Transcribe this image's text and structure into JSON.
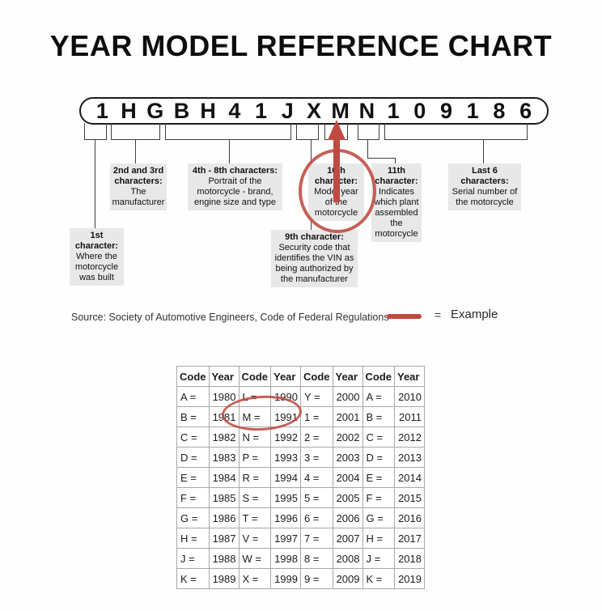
{
  "title": "YEAR MODEL REFERENCE CHART",
  "vin": {
    "characters": [
      "1",
      "H",
      "G",
      "B",
      "H",
      "4",
      "1",
      "J",
      "X",
      "M",
      "N",
      "1",
      "0",
      "9",
      "1",
      "8",
      "6"
    ],
    "highlighted_character": "M"
  },
  "callouts": {
    "chars_2_3": {
      "heading": "2nd and 3rd characters:",
      "body": "The manufacturer"
    },
    "chars_4_8": {
      "heading": "4th - 8th characters:",
      "body": "Portrait of the motorcycle - brand, engine size and type"
    },
    "char_10": {
      "heading": "10th character:",
      "body": "Model year of the motorcycle"
    },
    "char_11": {
      "heading": "11th character:",
      "body": "Indicates which plant assembled the motorcycle"
    },
    "last_6": {
      "heading": "Last 6 characters:",
      "body": "Serial number of the motorcycle"
    },
    "char_1": {
      "heading": "1st character:",
      "body": "Where the motorcycle was built"
    },
    "char_9": {
      "heading": "9th character:",
      "body": "Security code that identifies the VIN as being authorized by the manufacturer"
    }
  },
  "source_line": "Source:  Society of Automotive Engineers, Code of Federal Regulations",
  "legend": {
    "equals": "=",
    "label": "Example"
  },
  "colors": {
    "example_red": "#bf4a40",
    "callout_bg": "#e8e8e8",
    "line": "#3f3f3f",
    "table_border": "#a8a8a8"
  },
  "year_table": {
    "headers": [
      "Code",
      "Year",
      "Code",
      "Year",
      "Code",
      "Year",
      "Code",
      "Year"
    ],
    "rows": [
      [
        "A =",
        "1980",
        "L =",
        "1990",
        "Y =",
        "2000",
        "A =",
        "2010"
      ],
      [
        "B =",
        "1981",
        "M =",
        "1991",
        "1 =",
        "2001",
        "B =",
        "2011"
      ],
      [
        "C =",
        "1982",
        "N =",
        "1992",
        "2 =",
        "2002",
        "C =",
        "2012"
      ],
      [
        "D =",
        "1983",
        "P =",
        "1993",
        "3 =",
        "2003",
        "D =",
        "2013"
      ],
      [
        "E =",
        "1984",
        "R =",
        "1994",
        "4 =",
        "2004",
        "E =",
        "2014"
      ],
      [
        "F =",
        "1985",
        "S =",
        "1995",
        "5 =",
        "2005",
        "F =",
        "2015"
      ],
      [
        "G =",
        "1986",
        "T =",
        "1996",
        "6 =",
        "2006",
        "G =",
        "2016"
      ],
      [
        "H =",
        "1987",
        "V =",
        "1997",
        "7 =",
        "2007",
        "H =",
        "2017"
      ],
      [
        "J =",
        "1988",
        "W =",
        "1998",
        "8 =",
        "2008",
        "J =",
        "2018"
      ],
      [
        "K =",
        "1989",
        "X =",
        "1999",
        "9 =",
        "2009",
        "K =",
        "2019"
      ]
    ],
    "circled_entry": {
      "code": "M",
      "year": "1991"
    }
  }
}
